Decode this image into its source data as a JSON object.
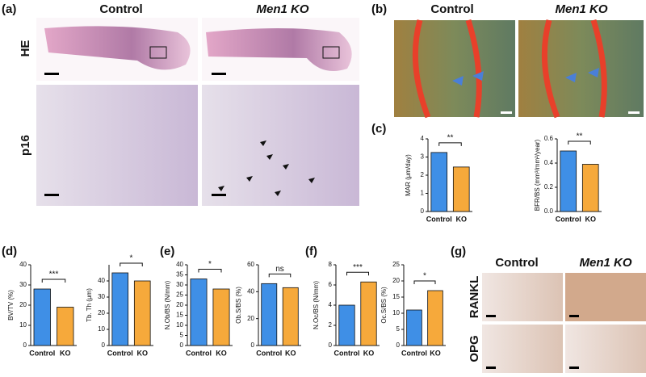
{
  "panels": {
    "a": {
      "label": "(a)",
      "col1": "Control",
      "col2": "Men1 KO",
      "row1": "HE",
      "row2": "p16"
    },
    "b": {
      "label": "(b)",
      "col1": "Control",
      "col2": "Men1 KO"
    },
    "c": {
      "label": "(c)"
    },
    "d": {
      "label": "(d)"
    },
    "e": {
      "label": "(e)"
    },
    "f": {
      "label": "(f)"
    },
    "g": {
      "label": "(g)",
      "col1": "Control",
      "col2": "Men1 KO",
      "row1": "RANKL",
      "row2": "OPG"
    }
  },
  "chart_data": [
    {
      "type": "bar",
      "ylabel": "MAR (μm/day)",
      "categories": [
        "Control",
        "KO"
      ],
      "values": [
        3.25,
        2.45
      ],
      "colors": [
        "#3f8fe6",
        "#f6a93b"
      ],
      "ylim": [
        0,
        4
      ],
      "yticks": [
        0,
        1,
        2,
        3,
        4
      ],
      "significance": "**"
    },
    {
      "type": "bar",
      "ylabel": "BFR/BS (mm³/mm²/year)",
      "categories": [
        "Control",
        "KO"
      ],
      "values": [
        0.5,
        0.39
      ],
      "colors": [
        "#3f8fe6",
        "#f6a93b"
      ],
      "ylim": [
        0,
        0.6
      ],
      "yticks": [
        {
          "value": 0,
          "label": "0.0"
        },
        0.2,
        0.4,
        0.6
      ],
      "significance": "**"
    },
    {
      "type": "bar",
      "ylabel": "BV/TV (%)",
      "categories": [
        "Control",
        "KO"
      ],
      "values": [
        28,
        19
      ],
      "colors": [
        "#3f8fe6",
        "#f6a93b"
      ],
      "ylim": [
        0,
        40
      ],
      "yticks": [
        0,
        10,
        20,
        30,
        40
      ],
      "significance": "***"
    },
    {
      "type": "bar",
      "ylabel": "Tb. Th (μm)",
      "categories": [
        "Control",
        "KO"
      ],
      "values": [
        45,
        40
      ],
      "colors": [
        "#3f8fe6",
        "#f6a93b"
      ],
      "ylim": [
        0,
        50
      ],
      "yticks": [
        0,
        10,
        20,
        30,
        40
      ],
      "significance": "*"
    },
    {
      "type": "bar",
      "ylabel": "N.Ob/BS (N/mm)",
      "categories": [
        "Control",
        "KO"
      ],
      "values": [
        33,
        28
      ],
      "colors": [
        "#3f8fe6",
        "#f6a93b"
      ],
      "ylim": [
        0,
        40
      ],
      "yticks": [
        0,
        5,
        10,
        15,
        20,
        25,
        30,
        35,
        40
      ],
      "significance": "*"
    },
    {
      "type": "bar",
      "ylabel": "Ob.S/BS (%)",
      "categories": [
        "Control",
        "KO"
      ],
      "values": [
        46,
        43
      ],
      "colors": [
        "#3f8fe6",
        "#f6a93b"
      ],
      "ylim": [
        0,
        60
      ],
      "yticks": [
        0,
        20,
        40,
        60
      ],
      "significance": "ns"
    },
    {
      "type": "bar",
      "ylabel": "N.Oc/BS (N/mm)",
      "categories": [
        "Control",
        "KO"
      ],
      "values": [
        4.0,
        6.3
      ],
      "colors": [
        "#3f8fe6",
        "#f6a93b"
      ],
      "ylim": [
        0,
        8
      ],
      "yticks": [
        0,
        2,
        4,
        6,
        8
      ],
      "significance": "***"
    },
    {
      "type": "bar",
      "ylabel": "Oc.S/BS (%)",
      "categories": [
        "Control",
        "KO"
      ],
      "values": [
        11,
        17
      ],
      "colors": [
        "#3f8fe6",
        "#f6a93b"
      ],
      "ylim": [
        0,
        25
      ],
      "yticks": [
        0,
        5,
        10,
        15,
        20,
        25
      ],
      "significance": "*"
    }
  ]
}
